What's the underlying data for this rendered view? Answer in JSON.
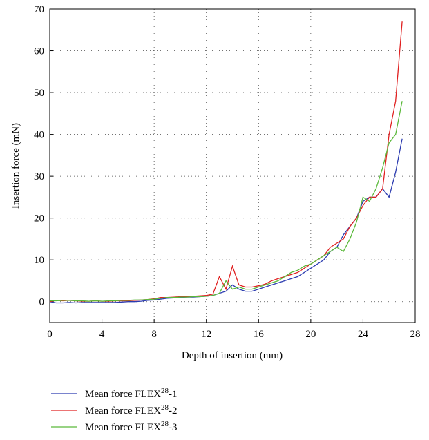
{
  "chart_data": {
    "type": "line",
    "x_label": "Depth of insertion (mm)",
    "y_label": "Insertion force (mN)",
    "x": [
      0,
      0.5,
      1,
      1.5,
      2,
      2.5,
      3,
      3.5,
      4,
      4.5,
      5,
      5.5,
      6,
      6.5,
      7,
      7.5,
      8,
      8.5,
      9,
      9.5,
      10,
      10.5,
      11,
      11.5,
      12,
      12.5,
      13,
      13.5,
      14,
      14.5,
      15,
      15.5,
      16,
      16.5,
      17,
      17.5,
      18,
      18.5,
      19,
      19.5,
      20,
      20.5,
      21,
      21.5,
      22,
      22.5,
      23,
      23.5,
      24,
      24.5,
      25,
      25.5,
      26,
      26.5,
      27
    ],
    "series": [
      {
        "name": "Mean force FLEX28-1",
        "color": "#2b3bb0",
        "values": [
          0,
          -0.3,
          -0.3,
          -0.2,
          -0.3,
          -0.2,
          -0.2,
          -0.2,
          -0.2,
          -0.2,
          -0.2,
          -0.1,
          0,
          0,
          0.1,
          0.3,
          0.4,
          0.6,
          0.8,
          0.9,
          1,
          1.1,
          1.1,
          1.2,
          1.3,
          1.5,
          2,
          2.5,
          4,
          3,
          2.5,
          2.5,
          3,
          3.5,
          4,
          4.5,
          5,
          5.5,
          6,
          7,
          8,
          9,
          10,
          12,
          13,
          16,
          18,
          20,
          24,
          25,
          25,
          27,
          25,
          31,
          39
        ]
      },
      {
        "name": "Mean force FLEX28-2",
        "color": "#e02020",
        "values": [
          0,
          0.3,
          0.2,
          0.3,
          0.2,
          0.1,
          0.1,
          0.2,
          0.1,
          0.1,
          0.2,
          0.2,
          0.2,
          0.3,
          0.4,
          0.5,
          0.7,
          1,
          1,
          1.1,
          1.2,
          1.2,
          1.3,
          1.4,
          1.5,
          1.8,
          6,
          3,
          8.5,
          4,
          3.5,
          3.5,
          3.8,
          4.2,
          5,
          5.5,
          6,
          6.5,
          7,
          8,
          9,
          10,
          11,
          13,
          14,
          15,
          18,
          20,
          23,
          25,
          25,
          27,
          40,
          48,
          67
        ]
      },
      {
        "name": "Mean force FLEX28-3",
        "color": "#5ab93a",
        "values": [
          0.2,
          0.2,
          0.3,
          0.3,
          0.2,
          0.2,
          0.1,
          0.2,
          0.1,
          0.2,
          0.2,
          0.3,
          0.3,
          0.4,
          0.4,
          0.5,
          0.6,
          0.8,
          1,
          1,
          1.1,
          1.1,
          1.2,
          1.2,
          1.3,
          1.5,
          2,
          5,
          3,
          3.5,
          3,
          3,
          3.5,
          4,
          4.5,
          5,
          6,
          7,
          7.5,
          8.5,
          9,
          10,
          11,
          12,
          13,
          12,
          15,
          19,
          25,
          24,
          27,
          32,
          38,
          40,
          48
        ]
      }
    ],
    "xlim": [
      0,
      28
    ],
    "xticks": [
      0,
      4,
      8,
      12,
      16,
      20,
      24,
      28
    ],
    "ylim": [
      -5,
      70
    ],
    "yticks": [
      0,
      10,
      20,
      30,
      40,
      50,
      60,
      70
    ],
    "grid": true,
    "legend": "below"
  }
}
